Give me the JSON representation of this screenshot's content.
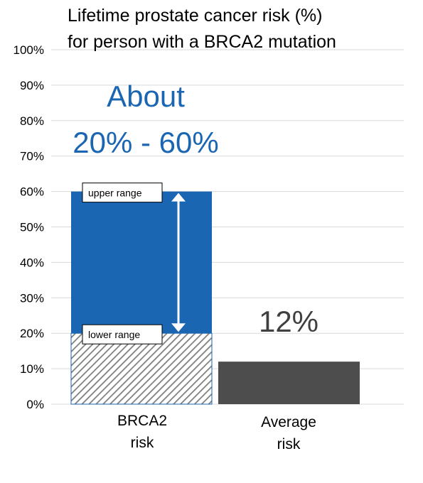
{
  "colors": {
    "upper_bar": "#1a66b2",
    "lower_hatch": "#7d7d7d",
    "average_bar": "#4d4d4d",
    "highlight_text": "#1a66b2",
    "average_text": "#404040",
    "gridline": "#d9d9d9"
  },
  "chart_data": {
    "type": "bar",
    "title_lines": [
      "Lifetime prostate cancer risk (%)",
      "for person with a BRCA2 mutation"
    ],
    "categories": [
      [
        "BRCA2",
        "risk"
      ],
      [
        "Average",
        "risk"
      ]
    ],
    "ylim": [
      0,
      100
    ],
    "yticks": [
      "0%",
      "10%",
      "20%",
      "30%",
      "40%",
      "50%",
      "60%",
      "70%",
      "80%",
      "90%",
      "100%"
    ],
    "grid": true,
    "bars": [
      {
        "category_index": 0,
        "lower": 20,
        "upper": 60
      },
      {
        "category_index": 1,
        "value": 12
      }
    ],
    "annotations": {
      "range_text": [
        "About",
        "20% - 60%"
      ],
      "average_text": "12%",
      "upper_label": "upper range",
      "lower_label": "lower range"
    }
  }
}
